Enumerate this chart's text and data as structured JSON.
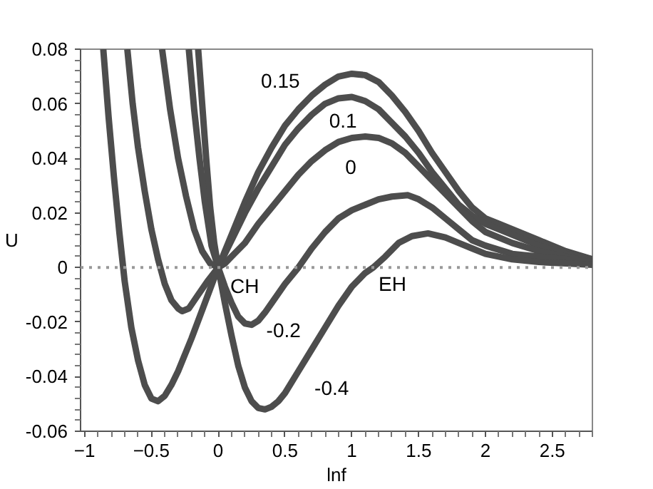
{
  "chart_data": {
    "type": "line",
    "xlabel": "lnf",
    "ylabel": "U",
    "xlim": [
      -1.03,
      2.8
    ],
    "ylim": [
      -0.06,
      0.08
    ],
    "xticks": [
      {
        "value": -1,
        "label": "−1"
      },
      {
        "value": -0.5,
        "label": "−0.5"
      },
      0,
      0.5,
      1,
      1.5,
      2,
      2.5
    ],
    "yticks": [
      {
        "value": -0.06,
        "label": "-0.06"
      },
      {
        "value": -0.04,
        "label": "-0.04"
      },
      {
        "value": -0.02,
        "label": "-0.02"
      },
      0,
      0.02,
      0.04,
      0.06,
      0.08
    ],
    "grid": false,
    "marker": "none",
    "line_style": "solid",
    "series": [
      {
        "name": "0.15",
        "color": "#4d4d4d",
        "x": [
          -0.15,
          -0.12,
          -0.09,
          -0.06,
          -0.03,
          0,
          0.05,
          0.1,
          0.2,
          0.3,
          0.4,
          0.5,
          0.6,
          0.7,
          0.8,
          0.9,
          1.0,
          1.1,
          1.2,
          1.3,
          1.4,
          1.5,
          1.6,
          1.7,
          1.8,
          1.9,
          2.0,
          2.1,
          2.25,
          2.4,
          2.6,
          2.8
        ],
        "values": [
          0.08,
          0.06,
          0.04,
          0.022,
          0.009,
          0,
          0.006,
          0.012,
          0.024,
          0.035,
          0.044,
          0.052,
          0.058,
          0.063,
          0.067,
          0.07,
          0.071,
          0.0705,
          0.068,
          0.063,
          0.057,
          0.05,
          0.042,
          0.035,
          0.028,
          0.022,
          0.018,
          0.016,
          0.013,
          0.01,
          0.006,
          0.003
        ]
      },
      {
        "name": "0.1",
        "color": "#4d4d4d",
        "x": [
          -0.22,
          -0.18,
          -0.14,
          -0.1,
          -0.05,
          0,
          0.05,
          0.1,
          0.2,
          0.3,
          0.4,
          0.5,
          0.6,
          0.7,
          0.8,
          0.9,
          1.0,
          1.1,
          1.2,
          1.3,
          1.4,
          1.5,
          1.6,
          1.7,
          1.8,
          1.9,
          2.0,
          2.1,
          2.25,
          2.4,
          2.6,
          2.8
        ],
        "values": [
          0.08,
          0.058,
          0.04,
          0.024,
          0.008,
          0,
          0.005,
          0.01,
          0.02,
          0.029,
          0.037,
          0.045,
          0.051,
          0.056,
          0.06,
          0.062,
          0.0625,
          0.061,
          0.058,
          0.053,
          0.048,
          0.042,
          0.035,
          0.029,
          0.023,
          0.019,
          0.016,
          0.014,
          0.011,
          0.008,
          0.005,
          0.003
        ]
      },
      {
        "name": "0",
        "color": "#4d4d4d",
        "x": [
          -0.42,
          -0.36,
          -0.3,
          -0.24,
          -0.18,
          -0.12,
          -0.06,
          0,
          0.05,
          0.1,
          0.2,
          0.3,
          0.4,
          0.5,
          0.6,
          0.7,
          0.8,
          0.9,
          1.0,
          1.1,
          1.2,
          1.3,
          1.4,
          1.5,
          1.6,
          1.7,
          1.8,
          1.9,
          2.0,
          2.2,
          2.4,
          2.6,
          2.8
        ],
        "values": [
          0.08,
          0.058,
          0.04,
          0.026,
          0.014,
          0.006,
          0.0015,
          0,
          0.0015,
          0.004,
          0.009,
          0.016,
          0.022,
          0.028,
          0.034,
          0.039,
          0.043,
          0.046,
          0.0475,
          0.048,
          0.0475,
          0.0455,
          0.042,
          0.037,
          0.032,
          0.027,
          0.022,
          0.017,
          0.013,
          0.009,
          0.006,
          0.004,
          0.002
        ]
      },
      {
        "name": "-0.2",
        "color": "#4d4d4d",
        "x": [
          -0.68,
          -0.64,
          -0.6,
          -0.55,
          -0.5,
          -0.45,
          -0.4,
          -0.35,
          -0.3,
          -0.27,
          -0.22,
          -0.15,
          -0.08,
          0,
          0.05,
          0.1,
          0.15,
          0.2,
          0.25,
          0.3,
          0.35,
          0.4,
          0.5,
          0.6,
          0.7,
          0.8,
          0.9,
          1.0,
          1.1,
          1.2,
          1.3,
          1.42,
          1.5,
          1.6,
          1.7,
          1.8,
          1.9,
          2.0,
          2.2,
          2.4,
          2.6,
          2.8
        ],
        "values": [
          0.08,
          0.06,
          0.044,
          0.028,
          0.014,
          0.003,
          -0.006,
          -0.012,
          -0.015,
          -0.016,
          -0.015,
          -0.01,
          -0.005,
          0,
          -0.007,
          -0.013,
          -0.018,
          -0.0205,
          -0.021,
          -0.0195,
          -0.0165,
          -0.013,
          -0.006,
          0,
          0.007,
          0.013,
          0.018,
          0.021,
          0.023,
          0.025,
          0.026,
          0.0265,
          0.025,
          0.022,
          0.018,
          0.014,
          0.01,
          0.008,
          0.005,
          0.004,
          0.003,
          0.002
        ]
      },
      {
        "name": "-0.4",
        "color": "#4d4d4d",
        "x": [
          -0.86,
          -0.82,
          -0.78,
          -0.74,
          -0.7,
          -0.65,
          -0.6,
          -0.55,
          -0.5,
          -0.45,
          -0.4,
          -0.35,
          -0.3,
          -0.2,
          -0.1,
          0,
          0.05,
          0.1,
          0.15,
          0.2,
          0.25,
          0.3,
          0.35,
          0.4,
          0.45,
          0.5,
          0.6,
          0.7,
          0.8,
          0.9,
          1.0,
          1.1,
          1.16,
          1.25,
          1.35,
          1.45,
          1.57,
          1.7,
          1.8,
          1.9,
          2.0,
          2.2,
          2.4,
          2.6,
          2.8
        ],
        "values": [
          0.08,
          0.055,
          0.033,
          0.013,
          -0.005,
          -0.022,
          -0.034,
          -0.043,
          -0.048,
          -0.049,
          -0.047,
          -0.043,
          -0.038,
          -0.026,
          -0.013,
          0,
          -0.013,
          -0.025,
          -0.036,
          -0.044,
          -0.049,
          -0.0515,
          -0.052,
          -0.051,
          -0.049,
          -0.046,
          -0.038,
          -0.03,
          -0.022,
          -0.014,
          -0.007,
          -0.002,
          0,
          0.004,
          0.009,
          0.0115,
          0.0125,
          0.011,
          0.009,
          0.007,
          0.005,
          0.003,
          0.002,
          0.0015,
          0.001
        ]
      }
    ],
    "ref_lines": [
      {
        "axis": "y",
        "value": 0,
        "color": "#999999",
        "line_style": "dotted"
      }
    ],
    "annotations": [
      "CH",
      "EH"
    ]
  }
}
